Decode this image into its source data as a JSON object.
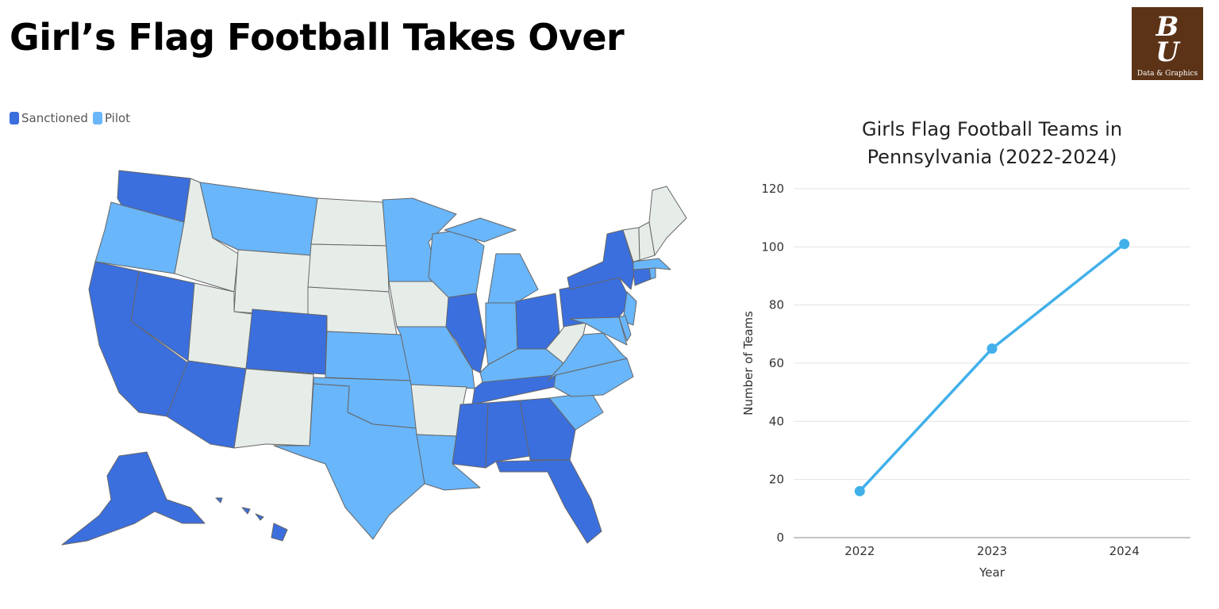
{
  "page_title": "Girl’s Flag Football Takes Over",
  "logo": {
    "monogram_top": "B",
    "monogram_bottom": "U",
    "subtitle": "Data & Graphics",
    "background": "#5c3317"
  },
  "map": {
    "legend": [
      {
        "label": "Sanctioned",
        "color": "#3b6fde"
      },
      {
        "label": "Pilot",
        "color": "#69b6fa"
      }
    ],
    "other_color": "#e6ede9",
    "sanctioned_states": [
      "Washington",
      "California",
      "Nevada",
      "Arizona",
      "Colorado",
      "Illinois",
      "Ohio",
      "Pennsylvania",
      "New York",
      "Connecticut",
      "Tennessee",
      "Mississippi",
      "Alabama",
      "Georgia",
      "Florida",
      "Alaska",
      "Hawaii"
    ],
    "pilot_states": [
      "Oregon",
      "Montana",
      "Minnesota",
      "Wisconsin",
      "Michigan",
      "Indiana",
      "Kentucky",
      "Virginia",
      "North Carolina",
      "South Carolina",
      "Kansas",
      "Oklahoma",
      "Texas",
      "Missouri",
      "Louisiana",
      "New Jersey",
      "Maryland",
      "Delaware",
      "Massachusetts",
      "Rhode Island"
    ]
  },
  "chart_data": {
    "type": "line",
    "title": "Girls Flag Football Teams in Pennsylvania (2022-2024)",
    "x": [
      "2022",
      "2023",
      "2024"
    ],
    "series": [
      {
        "values": [
          16,
          65,
          101
        ]
      }
    ],
    "xlabel": "Year",
    "ylabel": "Number of Teams",
    "ylim": [
      0,
      120
    ],
    "yticks": [
      0,
      20,
      40,
      60,
      80,
      100,
      120
    ],
    "grid": true,
    "legend": "none",
    "line_color": "#41b0ea"
  }
}
